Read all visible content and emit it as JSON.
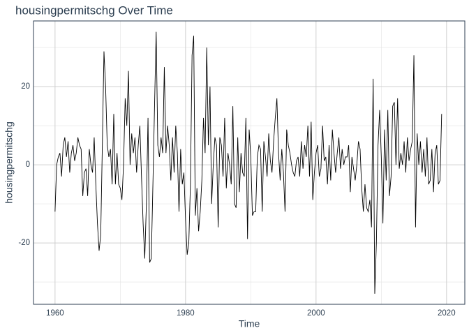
{
  "chart_data": {
    "type": "line",
    "title": "housingpermitschg Over Time",
    "x_label": "Time",
    "y_label": "housingpermitschg",
    "color": "#000000",
    "grid": true,
    "xlim": [
      1956.7,
      2022.8
    ],
    "xticks": [
      1960,
      1980,
      2000,
      2020
    ],
    "xminor": [
      1970,
      1990,
      2010
    ],
    "ylim": [
      -35.7,
      36.8
    ],
    "yticks": [
      -20,
      0,
      20
    ],
    "yminor": [
      -30,
      -10,
      10,
      30
    ],
    "x": [
      1960,
      1960.25,
      1960.5,
      1960.75,
      1961,
      1961.25,
      1961.5,
      1961.75,
      1962,
      1962.25,
      1962.5,
      1962.75,
      1963,
      1963.25,
      1963.5,
      1963.75,
      1964,
      1964.25,
      1964.5,
      1964.75,
      1965,
      1965.25,
      1965.5,
      1965.75,
      1966,
      1966.25,
      1966.5,
      1966.75,
      1967,
      1967.25,
      1967.5,
      1967.75,
      1968,
      1968.25,
      1968.5,
      1968.75,
      1969,
      1969.25,
      1969.5,
      1969.75,
      1970,
      1970.25,
      1970.5,
      1970.75,
      1971,
      1971.25,
      1971.5,
      1971.75,
      1972,
      1972.25,
      1972.5,
      1972.75,
      1973,
      1973.25,
      1973.5,
      1973.75,
      1974,
      1974.25,
      1974.5,
      1974.75,
      1975,
      1975.25,
      1975.5,
      1975.75,
      1976,
      1976.25,
      1976.5,
      1976.75,
      1977,
      1977.25,
      1977.5,
      1977.75,
      1978,
      1978.25,
      1978.5,
      1978.75,
      1979,
      1979.25,
      1979.5,
      1979.75,
      1980,
      1980.25,
      1980.5,
      1980.75,
      1981,
      1981.25,
      1981.5,
      1981.75,
      1982,
      1982.25,
      1982.5,
      1982.75,
      1983,
      1983.25,
      1983.5,
      1983.75,
      1984,
      1984.25,
      1984.5,
      1984.75,
      1985,
      1985.25,
      1985.5,
      1985.75,
      1986,
      1986.25,
      1986.5,
      1986.75,
      1987,
      1987.25,
      1987.5,
      1987.75,
      1988,
      1988.25,
      1988.5,
      1988.75,
      1989,
      1989.25,
      1989.5,
      1989.75,
      1990,
      1990.25,
      1990.5,
      1990.75,
      1991,
      1991.25,
      1991.5,
      1991.75,
      1992,
      1992.25,
      1992.5,
      1992.75,
      1993,
      1993.25,
      1993.5,
      1993.75,
      1994,
      1994.25,
      1994.5,
      1994.75,
      1995,
      1995.25,
      1995.5,
      1995.75,
      1996,
      1996.25,
      1996.5,
      1996.75,
      1997,
      1997.25,
      1997.5,
      1997.75,
      1998,
      1998.25,
      1998.5,
      1998.75,
      1999,
      1999.25,
      1999.5,
      1999.75,
      2000,
      2000.25,
      2000.5,
      2000.75,
      2001,
      2001.25,
      2001.5,
      2001.75,
      2002,
      2002.25,
      2002.5,
      2002.75,
      2003,
      2003.25,
      2003.5,
      2003.75,
      2004,
      2004.25,
      2004.5,
      2004.75,
      2005,
      2005.25,
      2005.5,
      2005.75,
      2006,
      2006.25,
      2006.5,
      2006.75,
      2007,
      2007.25,
      2007.5,
      2007.75,
      2008,
      2008.25,
      2008.5,
      2008.75,
      2009,
      2009.25,
      2009.5,
      2009.75,
      2010,
      2010.25,
      2010.5,
      2010.75,
      2011,
      2011.25,
      2011.5,
      2011.75,
      2012,
      2012.25,
      2012.5,
      2012.75,
      2013,
      2013.25,
      2013.5,
      2013.75,
      2014,
      2014.25,
      2014.5,
      2014.75,
      2015,
      2015.25,
      2015.5,
      2015.75,
      2016,
      2016.25,
      2016.5,
      2016.75,
      2017,
      2017.25,
      2017.5,
      2017.75,
      2018,
      2018.25,
      2018.5,
      2018.75,
      2019,
      2019.25
    ],
    "values": [
      -12,
      0,
      2,
      3,
      -3,
      5,
      7,
      2,
      6,
      -2,
      3,
      5,
      1,
      3,
      7,
      5,
      4,
      -8,
      -2,
      -1,
      -8,
      4,
      0,
      -2,
      7,
      -5,
      -15,
      -22,
      -18,
      5,
      29,
      20,
      5,
      2,
      4,
      -5,
      13,
      -5,
      3,
      -5,
      -6,
      -9,
      0,
      17,
      10,
      24,
      0,
      8,
      3,
      7,
      -2,
      5,
      10,
      -3,
      -15,
      -24,
      -10,
      12,
      -25,
      -24,
      -5,
      15,
      34,
      5,
      2,
      7,
      3,
      25,
      3,
      10,
      5,
      -4,
      7,
      -2,
      10,
      3,
      -12,
      4,
      -5,
      -2,
      -14,
      -23,
      -20,
      -5,
      28,
      33,
      -13,
      -6,
      -17,
      -12,
      -4,
      12,
      3,
      30,
      5,
      20,
      -10,
      0,
      7,
      5,
      -16,
      7,
      5,
      -3,
      12,
      -6,
      3,
      0,
      -5,
      15,
      -10,
      -11,
      7,
      -7,
      3,
      -2,
      -3,
      12,
      -19,
      9,
      2,
      -13,
      -12,
      -12,
      2,
      5,
      4,
      -12,
      6,
      2,
      -3,
      8,
      1,
      -2,
      6,
      12,
      17,
      3,
      -4,
      4,
      -2,
      -12,
      9,
      5,
      3,
      0,
      -2,
      -3,
      1,
      2,
      -3,
      6,
      -1,
      5,
      2,
      10,
      -3,
      11,
      -9,
      -2,
      3,
      5,
      -3,
      -1,
      10,
      1,
      2,
      -5,
      5,
      -4,
      9,
      3,
      -2,
      3,
      7,
      -1,
      4,
      0,
      2,
      2,
      5,
      -7,
      2,
      -1,
      -4,
      0,
      6,
      4,
      -6,
      -12,
      -5,
      -11,
      -12,
      -9,
      -16,
      22,
      -33,
      -20,
      5,
      14,
      2,
      -15,
      9,
      -4,
      14,
      -8,
      -3,
      15,
      16,
      0,
      17,
      -1,
      3,
      0,
      6,
      -2,
      7,
      1,
      4,
      6,
      28,
      -16,
      8,
      0,
      6,
      -2,
      4,
      -3,
      7,
      -5,
      -4,
      4,
      -7,
      3,
      5,
      -5,
      -4,
      13
    ]
  }
}
